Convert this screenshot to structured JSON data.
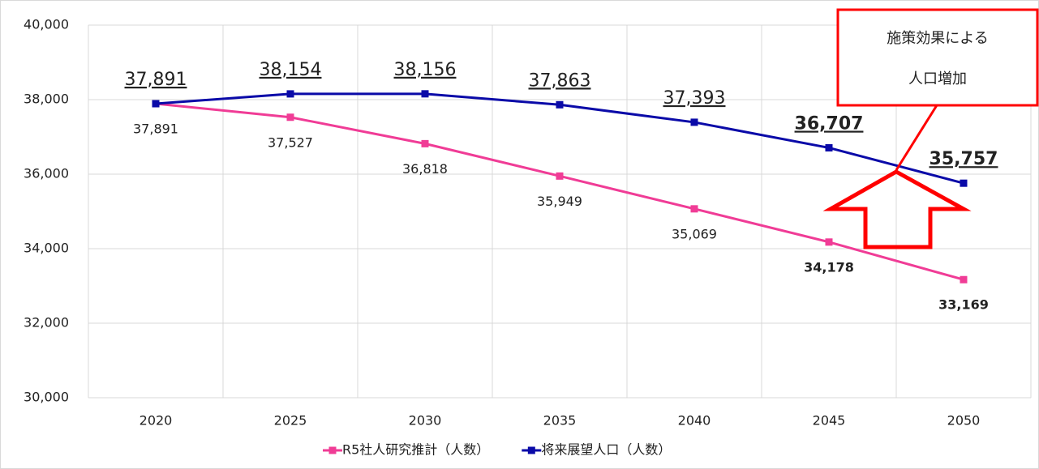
{
  "chart_data": {
    "type": "line",
    "categories": [
      "2020",
      "2025",
      "2030",
      "2035",
      "2040",
      "2045",
      "2050"
    ],
    "series": [
      {
        "name": "R5社人研究推計（人数）",
        "color": "#f03c96",
        "values": [
          37891,
          37527,
          36818,
          35949,
          35069,
          34178,
          33169
        ],
        "value_labels": [
          "37,891",
          "37,527",
          "36,818",
          "35,949",
          "35,069",
          "34,178",
          "33,169"
        ]
      },
      {
        "name": "将来展望人口（人数）",
        "color": "#0a0aa8",
        "values": [
          37891,
          38154,
          38156,
          37863,
          37393,
          36707,
          35757
        ],
        "value_labels": [
          "37,891",
          "38,154",
          "38,156",
          "37,863",
          "37,393",
          "36,707",
          "35,757"
        ]
      }
    ],
    "ylim": [
      30000,
      40000
    ],
    "yticks": [
      {
        "value": 30000,
        "label": "30,000"
      },
      {
        "value": 32000,
        "label": "32,000"
      },
      {
        "value": 34000,
        "label": "34,000"
      },
      {
        "value": 36000,
        "label": "36,000"
      },
      {
        "value": 38000,
        "label": "38,000"
      },
      {
        "value": 40000,
        "label": "40,000"
      }
    ],
    "grid": true,
    "legend": "bottom",
    "annotation": [
      "施策効果による",
      "人口増加"
    ]
  }
}
